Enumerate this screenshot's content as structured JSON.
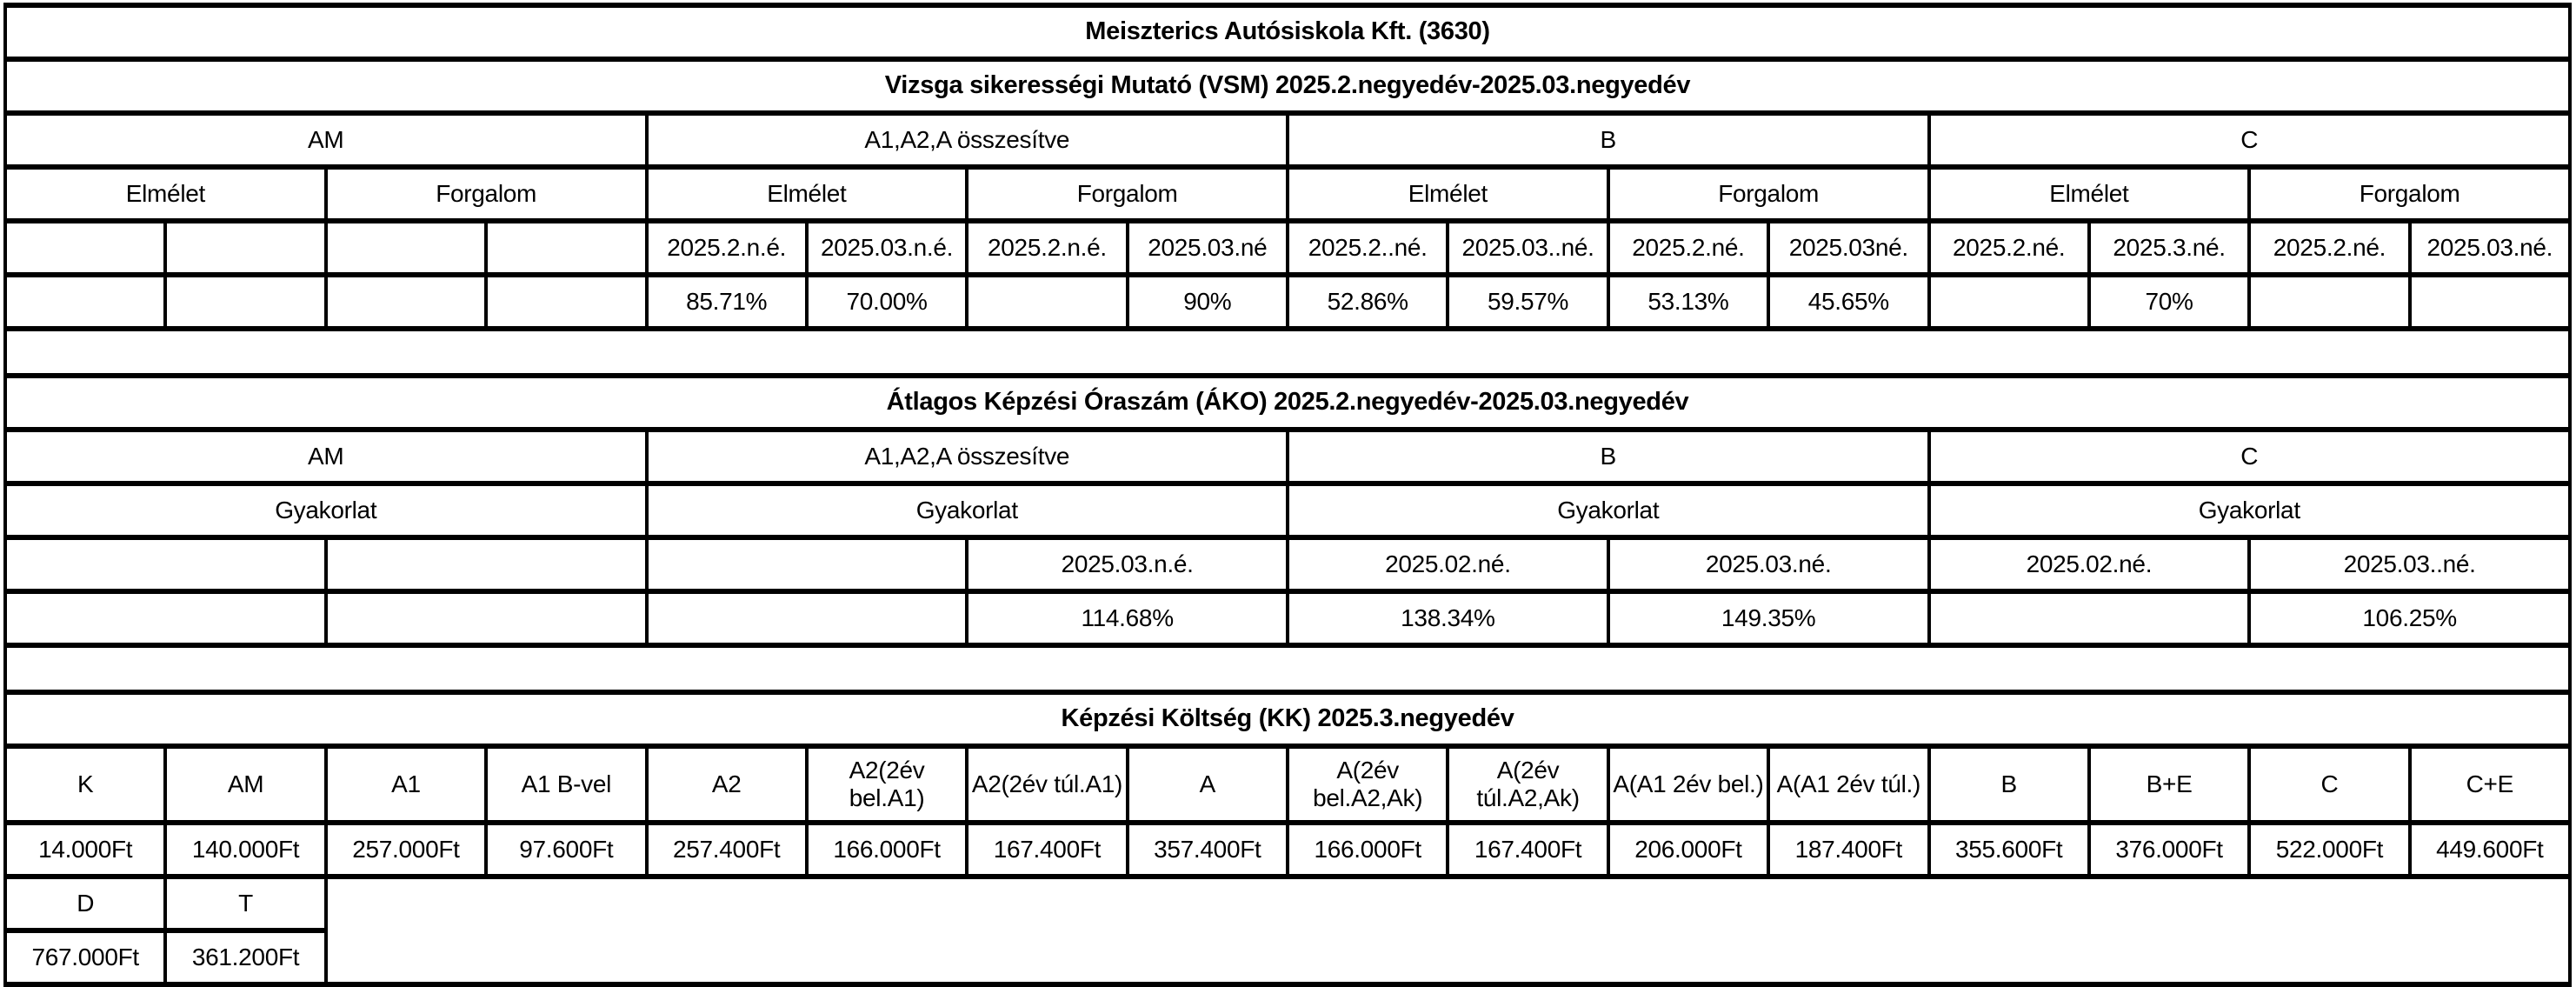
{
  "report": {
    "title": "Meiszterics Autósiskola Kft. (3630)"
  },
  "vsm": {
    "title": "Vizsga sikerességi Mutató (VSM) 2025.2.negyedév-2025.03.negyedév",
    "categories": [
      "AM",
      "A1,A2,A összesítve",
      "B",
      "C"
    ],
    "subheaders": [
      "Elmélet",
      "Forgalom",
      "Elmélet",
      "Forgalom",
      "Elmélet",
      "Forgalom",
      "Elmélet",
      "Forgalom"
    ],
    "periods": [
      "",
      "",
      "",
      "",
      "2025.2.n.é.",
      "2025.03.n.é.",
      "2025.2.n.é.",
      "2025.03.né",
      "2025.2..né.",
      "2025.03..né.",
      "2025.2.né.",
      "2025.03né.",
      "2025.2.né.",
      "2025.3.né.",
      "2025.2.né.",
      "2025.03.né."
    ],
    "values": [
      "",
      "",
      "",
      "",
      "85.71%",
      "70.00%",
      "",
      "90%",
      "52.86%",
      "59.57%",
      "53.13%",
      "45.65%",
      "",
      "70%",
      "",
      ""
    ]
  },
  "ako": {
    "title": "Átlagos Képzési Óraszám (ÁKO) 2025.2.negyedév-2025.03.negyedév",
    "categories": [
      "AM",
      "A1,A2,A összesítve",
      "B",
      "C"
    ],
    "subheaders": [
      "Gyakorlat",
      "Gyakorlat",
      "Gyakorlat",
      "Gyakorlat"
    ],
    "periods": [
      "",
      "",
      "",
      "2025.03.n.é.",
      "2025.02.né.",
      "2025.03.né.",
      "2025.02.né.",
      "2025.03..né."
    ],
    "values": [
      "",
      "",
      "",
      "114.68%",
      "138.34%",
      "149.35%",
      "",
      "106.25%"
    ]
  },
  "kk": {
    "title": "Képzési Költség (KK) 2025.3.negyedév",
    "headers": [
      "K",
      "AM",
      "A1",
      "A1 B-vel",
      "A2",
      "A2(2év bel.A1)",
      "A2(2év túl.A1)",
      "A",
      "A(2év bel.A2,Ak)",
      "A(2év túl.A2,Ak)",
      "A(A1 2év bel.)",
      "A(A1 2év túl.)",
      "B",
      "B+E",
      "C",
      "C+E"
    ],
    "values": [
      "14.000Ft",
      "140.000Ft",
      "257.000Ft",
      "97.600Ft",
      "257.400Ft",
      "166.000Ft",
      "167.400Ft",
      "357.400Ft",
      "166.000Ft",
      "167.400Ft",
      "206.000Ft",
      "187.400Ft",
      "355.600Ft",
      "376.000Ft",
      "522.000Ft",
      "449.600Ft"
    ],
    "extra_headers": [
      "D",
      "T"
    ],
    "extra_values": [
      "767.000Ft",
      "361.200Ft"
    ]
  }
}
